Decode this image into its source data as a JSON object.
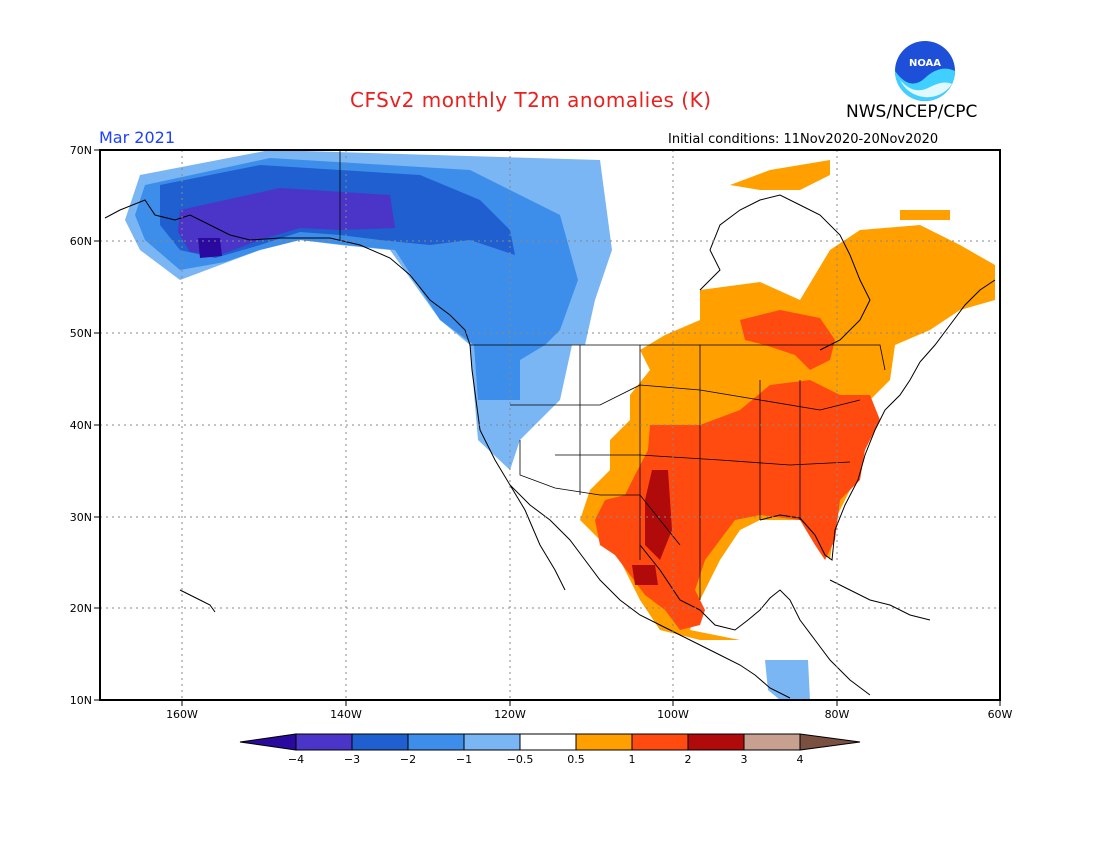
{
  "title": "CFSv2 monthly T2m anomalies (K)",
  "agency": "NWS/NCEP/CPC",
  "logo_text": "NOAA",
  "valid_month": "Mar 2021",
  "initial_conditions": "Initial conditions: 11Nov2020-20Nov2020",
  "map": {
    "lat_labels": [
      "70N",
      "60N",
      "50N",
      "40N",
      "30N",
      "20N",
      "10N"
    ],
    "lon_labels": [
      "160W",
      "140W",
      "120W",
      "100W",
      "80W",
      "60W"
    ]
  },
  "colorbar": {
    "labels": [
      "−4",
      "−3",
      "−2",
      "−1",
      "−0.5",
      "0.5",
      "1",
      "2",
      "3",
      "4"
    ],
    "colors": {
      "below_m4": "#2a0a9e",
      "m4_m3": "#4a35c8",
      "m3_m2": "#1f5fd0",
      "m2_m1": "#3d8eea",
      "m1_m05": "#7ab5f4",
      "neutral": "#ffffff",
      "p05_p1": "#ffa000",
      "p1_p2": "#ff4a10",
      "p2_p3": "#b00a0a",
      "p3_p4": "#c8a090",
      "above_p4": "#7a5040"
    }
  }
}
